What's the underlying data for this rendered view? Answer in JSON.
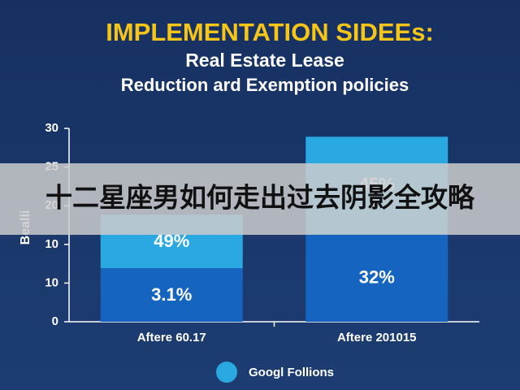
{
  "chart_data": {
    "type": "stacked_bar",
    "title": "IMPLEMENTATION SIDEEs:",
    "subtitle": [
      "Real Estate Lease",
      "Reduction ard Exemption policies"
    ],
    "y_label": "Bealli",
    "categories": [
      "Aftere 60.17",
      "Aftere 201015"
    ],
    "series": [
      {
        "color": "#1565c0",
        "values": [
          8.3,
          13.7
        ],
        "segment_texts": [
          "3.1%",
          "32%"
        ]
      },
      {
        "name": "Googl Follions",
        "color": "#29a8e2",
        "values": [
          8.3,
          15.0
        ],
        "segment_texts": [
          "49%",
          "45%"
        ]
      }
    ],
    "ylim": [
      0,
      30
    ],
    "yticks": [
      {
        "value": 0,
        "label": "0"
      },
      {
        "value": 6,
        "label": "10"
      },
      {
        "value": 12,
        "label": "10"
      },
      {
        "value": 18,
        "label": "20"
      },
      {
        "value": 24,
        "label": "25"
      },
      30
    ],
    "legend": "bottom",
    "overlay_banner": "十二星座男如何走出过去阴影全攻略"
  }
}
